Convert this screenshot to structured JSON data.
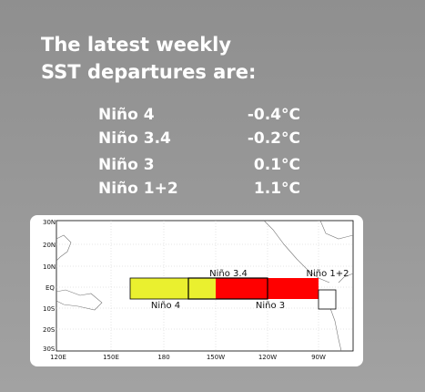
{
  "header": {
    "title_lines": [
      "The latest weekly",
      "SST departures are:"
    ]
  },
  "regions": [
    {
      "name": "Niño 4",
      "value": "-0.4°C"
    },
    {
      "name": "Niño 3.4",
      "value": "-0.2°C"
    },
    {
      "name": "Niño 3",
      "value": "0.1°C"
    },
    {
      "name": "Niño 1+2",
      "value": "1.1°C"
    }
  ],
  "map": {
    "lat_labels": [
      "30N",
      "20N",
      "10N",
      "EQ",
      "10S",
      "20S",
      "30S"
    ],
    "lon_labels": [
      "120E",
      "150E",
      "180",
      "150W",
      "120W",
      "90W"
    ],
    "box_labels": [
      "Niño 4",
      "Niño 3.4",
      "Niño 3",
      "Niño 1+2"
    ]
  }
}
